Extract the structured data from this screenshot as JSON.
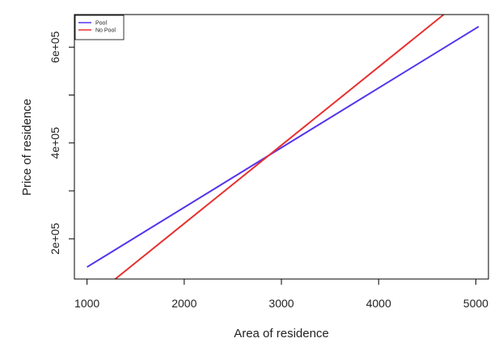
{
  "chart_data": {
    "type": "line",
    "title": "",
    "xlabel": "Area of residence",
    "ylabel": "Price of residence",
    "xlim": [
      870,
      5130
    ],
    "ylim": [
      116000,
      668000
    ],
    "x_ticks": [
      {
        "value": 1000,
        "label": "1000"
      },
      {
        "value": 2000,
        "label": "2000"
      },
      {
        "value": 3000,
        "label": "3000"
      },
      {
        "value": 4000,
        "label": "4000"
      },
      {
        "value": 5000,
        "label": "5000"
      }
    ],
    "y_ticks": [
      {
        "value": 200000,
        "label": "2e+05"
      },
      {
        "value": 300000,
        "label": ""
      },
      {
        "value": 400000,
        "label": "4e+05"
      },
      {
        "value": 500000,
        "label": ""
      },
      {
        "value": 600000,
        "label": "6e+05"
      }
    ],
    "grid": false,
    "legend_position": "top-left",
    "series": [
      {
        "name": "Pool",
        "color": "#5533ee",
        "x": [
          1000,
          5030
        ],
        "y": [
          141000,
          643000
        ]
      },
      {
        "name": "No Pool",
        "color": "#e83030",
        "x": [
          1290,
          4670
        ],
        "y": [
          116000,
          668000
        ]
      }
    ]
  }
}
